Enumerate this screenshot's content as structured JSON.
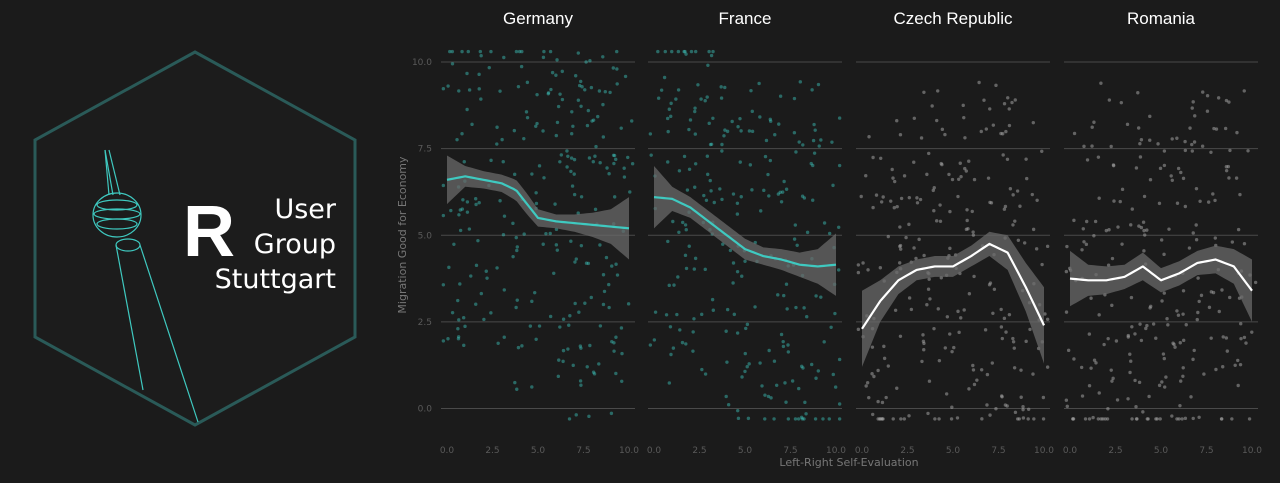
{
  "logo": {
    "letter": "R",
    "words": [
      "User",
      "Group",
      "Stuttgart"
    ],
    "accent": "#2fbfbf"
  },
  "colors": {
    "background": "#1b1b1b",
    "teal": "#3fc9c0",
    "white_line": "#ffffff",
    "grey_points": "#a0a0a0",
    "ribbon": "#6a6a6a",
    "grid": "#4a4a4a"
  },
  "chart_data": {
    "type": "scatter",
    "xlabel": "Left-Right Self-Evaluation",
    "ylabel": "Migration Good for Economy",
    "xlim": [
      0,
      10
    ],
    "ylim": [
      -2,
      11
    ],
    "x_ticks": [
      0,
      2.5,
      5,
      7.5,
      10
    ],
    "x_tick_labels": [
      "0.0",
      "2.5",
      "5.0",
      "7.5",
      "10.0"
    ],
    "y_ticks": [
      0,
      2.5,
      5,
      7.5,
      10
    ],
    "y_tick_labels": [
      "0.0",
      "2.5",
      "5.0",
      "7.5",
      "10.0"
    ],
    "grid": true,
    "facets": [
      {
        "name": "Germany",
        "color": "teal",
        "smooth_x": [
          0,
          1,
          2,
          3,
          3.8,
          4.4,
          5,
          6,
          7,
          8,
          9,
          10
        ],
        "smooth_y": [
          6.6,
          6.7,
          6.6,
          6.5,
          6.3,
          5.9,
          5.5,
          5.4,
          5.35,
          5.3,
          5.25,
          5.2
        ],
        "ribbon_halfwidth": [
          0.7,
          0.3,
          0.25,
          0.25,
          0.3,
          0.3,
          0.25,
          0.2,
          0.25,
          0.35,
          0.5,
          0.9
        ]
      },
      {
        "name": "France",
        "color": "teal",
        "smooth_x": [
          0,
          1,
          2,
          3,
          4,
          5,
          6,
          7,
          8,
          9,
          10
        ],
        "smooth_y": [
          6.1,
          6.05,
          5.8,
          5.4,
          5.0,
          4.6,
          4.4,
          4.3,
          4.15,
          4.1,
          4.15
        ],
        "ribbon_halfwidth": [
          0.9,
          0.35,
          0.3,
          0.3,
          0.3,
          0.3,
          0.25,
          0.3,
          0.35,
          0.5,
          0.9
        ]
      },
      {
        "name": "Czech Republic",
        "color": "white",
        "smooth_x": [
          0,
          1,
          2,
          3,
          4,
          5,
          6,
          7,
          8,
          9,
          10
        ],
        "smooth_y": [
          2.3,
          3.1,
          3.7,
          4.0,
          4.1,
          4.1,
          4.4,
          4.75,
          4.5,
          3.5,
          2.4
        ],
        "ribbon_halfwidth": [
          1.1,
          0.6,
          0.4,
          0.3,
          0.3,
          0.3,
          0.3,
          0.35,
          0.5,
          0.7,
          1.1
        ]
      },
      {
        "name": "Romania",
        "color": "white",
        "smooth_x": [
          0,
          1,
          2,
          3,
          4,
          5,
          6,
          7,
          8,
          9,
          10
        ],
        "smooth_y": [
          3.75,
          3.7,
          3.7,
          3.8,
          4.1,
          3.7,
          3.9,
          4.2,
          4.3,
          4.1,
          3.4
        ],
        "ribbon_halfwidth": [
          0.8,
          0.45,
          0.4,
          0.35,
          0.4,
          0.35,
          0.35,
          0.35,
          0.4,
          0.5,
          0.9
        ]
      }
    ]
  }
}
